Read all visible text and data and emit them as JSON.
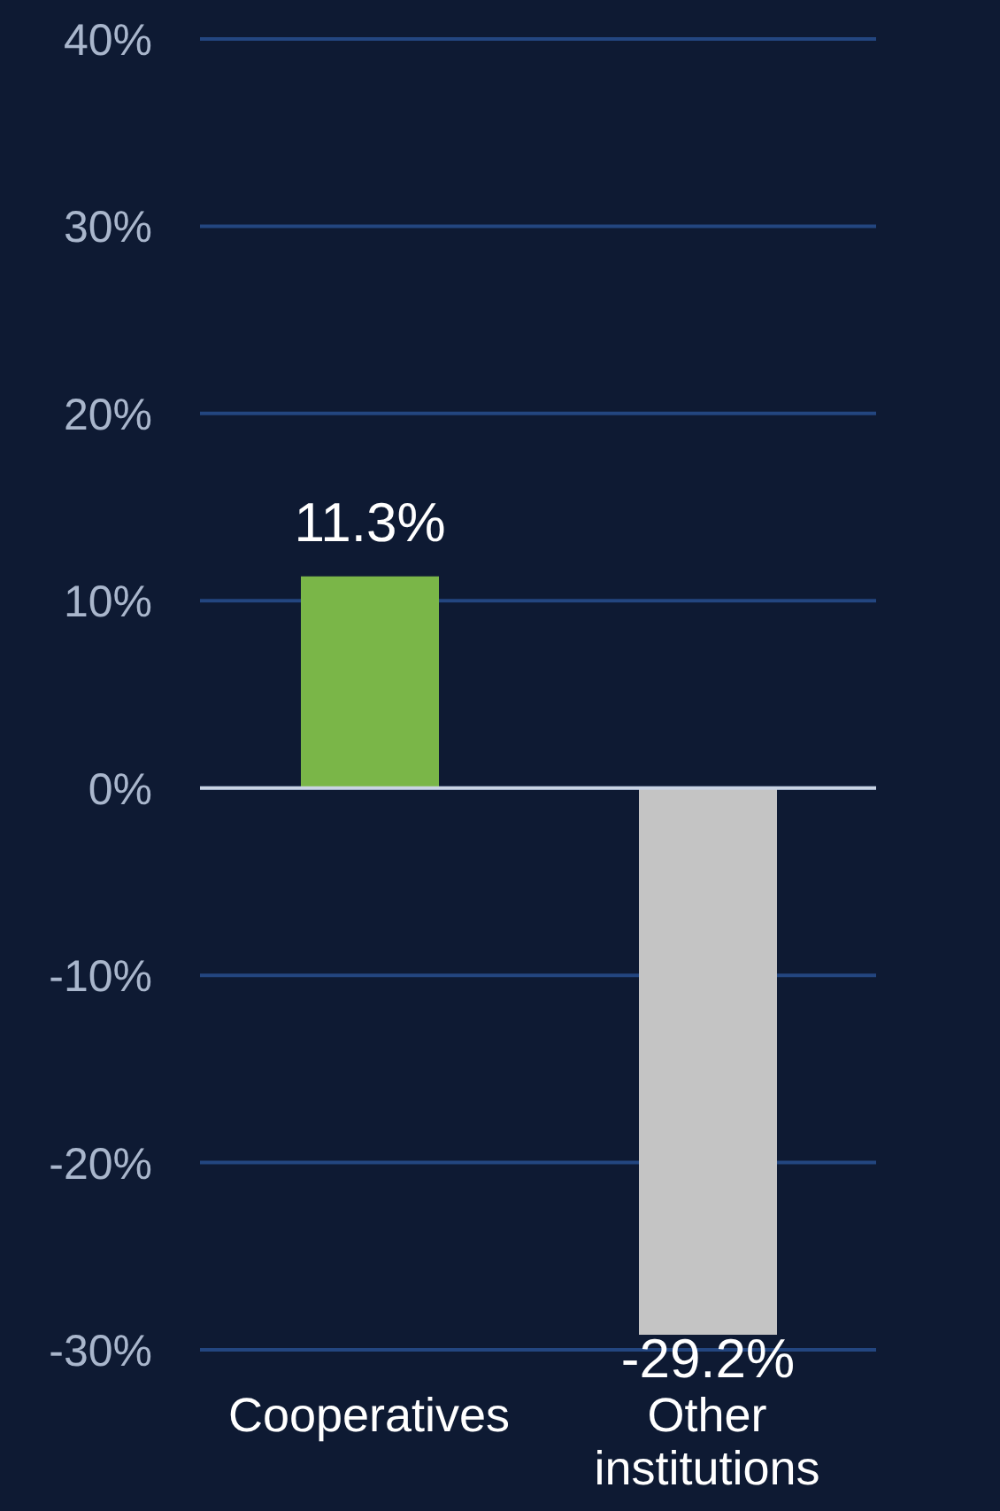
{
  "chart_data": {
    "type": "bar",
    "categories": [
      "Cooperatives",
      "Other institutions"
    ],
    "values": [
      11.3,
      -29.2
    ],
    "colors": [
      "#7ab648",
      "#c4c4c4"
    ],
    "ylim": [
      -30,
      40
    ],
    "yticks": [
      {
        "value": -30,
        "label": "-30%"
      },
      {
        "value": -20,
        "label": "-20%"
      },
      {
        "value": -10,
        "label": "-10%"
      },
      {
        "value": 0,
        "label": "0%"
      },
      {
        "value": 10,
        "label": "10%"
      },
      {
        "value": 20,
        "label": "20%"
      },
      {
        "value": 30,
        "label": "30%"
      },
      {
        "value": 40,
        "label": "40%"
      }
    ],
    "value_labels": [
      "11.3%",
      "-29.2%"
    ],
    "grid": "y"
  }
}
